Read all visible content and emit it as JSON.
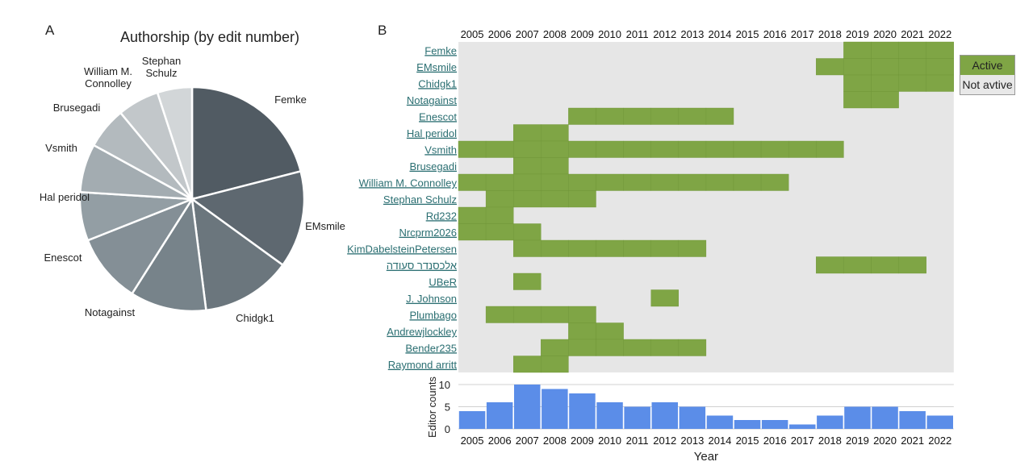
{
  "panel_a_letter": "A",
  "panel_b_letter": "B",
  "chart_data": [
    {
      "type": "pie",
      "title": "Authorship (by edit number)",
      "labels": [
        "Femke",
        "EMsmile",
        "Chidgk1",
        "Notagainst",
        "Enescot",
        "Hal peridol",
        "Vsmith",
        "Brusegadi",
        "William M. Connolley",
        "Stephan Schulz"
      ],
      "values": [
        21,
        14,
        13,
        11,
        10,
        7,
        7,
        6,
        6,
        5
      ],
      "colors": [
        "#515b63",
        "#5e6870",
        "#6b767d",
        "#77838a",
        "#848f96",
        "#939ea4",
        "#a3acb1",
        "#b3babe",
        "#c2c7ca",
        "#d2d6d8"
      ]
    },
    {
      "type": "heatmap",
      "years": [
        "2005",
        "2006",
        "2007",
        "2008",
        "2009",
        "2010",
        "2011",
        "2012",
        "2013",
        "2014",
        "2015",
        "2016",
        "2017",
        "2018",
        "2019",
        "2020",
        "2021",
        "2022"
      ],
      "editors": [
        {
          "name": "Femke",
          "active": [
            [
              2019,
              2022
            ]
          ]
        },
        {
          "name": "EMsmile",
          "active": [
            [
              2018,
              2022
            ]
          ]
        },
        {
          "name": "Chidgk1",
          "active": [
            [
              2019,
              2022
            ]
          ]
        },
        {
          "name": "Notagainst",
          "active": [
            [
              2019,
              2020
            ]
          ]
        },
        {
          "name": "Enescot",
          "active": [
            [
              2009,
              2014
            ]
          ]
        },
        {
          "name": "Hal peridol",
          "active": [
            [
              2007,
              2008
            ]
          ]
        },
        {
          "name": "Vsmith",
          "active": [
            [
              2005,
              2018
            ]
          ]
        },
        {
          "name": "Brusegadi",
          "active": [
            [
              2007,
              2008
            ]
          ]
        },
        {
          "name": "William M. Connolley",
          "active": [
            [
              2005,
              2016
            ]
          ]
        },
        {
          "name": "Stephan Schulz",
          "active": [
            [
              2006,
              2009
            ]
          ]
        },
        {
          "name": "Rd232",
          "active": [
            [
              2005,
              2006
            ]
          ]
        },
        {
          "name": "Nrcprm2026",
          "active": [
            [
              2005,
              2007
            ]
          ]
        },
        {
          "name": "KimDabelsteinPetersen",
          "active": [
            [
              2007,
              2013
            ]
          ]
        },
        {
          "name": "אלכסנדר סעודה",
          "active": [
            [
              2018,
              2021
            ]
          ]
        },
        {
          "name": "UBeR",
          "active": [
            [
              2007,
              2007
            ]
          ]
        },
        {
          "name": "J. Johnson",
          "active": [
            [
              2012,
              2012
            ]
          ]
        },
        {
          "name": "Plumbago",
          "active": [
            [
              2006,
              2009
            ]
          ]
        },
        {
          "name": "Andrewjlockley",
          "active": [
            [
              2009,
              2010
            ]
          ]
        },
        {
          "name": "Bender235",
          "active": [
            [
              2008,
              2013
            ]
          ]
        },
        {
          "name": "Raymond arritt",
          "active": [
            [
              2007,
              2008
            ]
          ]
        }
      ],
      "legend": [
        "Active",
        "Not avtive"
      ],
      "colors": {
        "active": "#7fa545",
        "inactive": "#e6e6e6"
      }
    },
    {
      "type": "bar",
      "categories": [
        "2005",
        "2006",
        "2007",
        "2008",
        "2009",
        "2010",
        "2011",
        "2012",
        "2013",
        "2014",
        "2015",
        "2016",
        "2017",
        "2018",
        "2019",
        "2020",
        "2021",
        "2022"
      ],
      "values": [
        4,
        6,
        10,
        9,
        8,
        6,
        5,
        6,
        5,
        3,
        2,
        2,
        1,
        3,
        5,
        5,
        4,
        3
      ],
      "ylabel": "Editor counts",
      "xlabel": "Year",
      "yticks": [
        0,
        5,
        10
      ],
      "ylim": [
        0,
        11
      ],
      "color": "#5b8de8"
    }
  ]
}
